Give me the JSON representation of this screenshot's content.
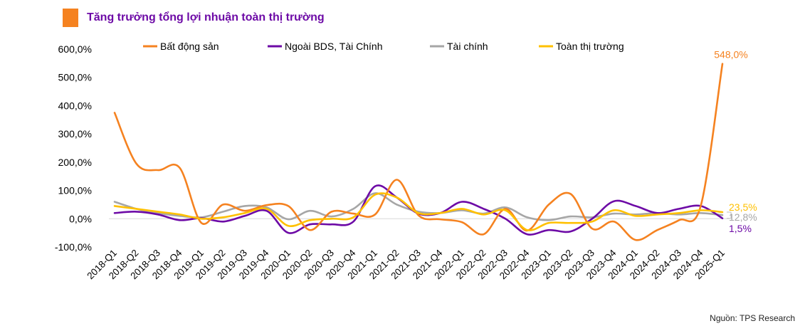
{
  "header": {
    "title": "Tăng trưởng tổng lợi nhuận toàn thị trường",
    "accent_color": "#f58220"
  },
  "source": "Nguồn: TPS Research",
  "chart_data": {
    "type": "line",
    "title": "Tăng trưởng tổng lợi nhuận toàn thị trường",
    "xlabel": "",
    "ylabel": "",
    "ylim": [
      -100,
      600
    ],
    "grid": false,
    "legend_position": "top",
    "y_ticks": [
      "-100,0%",
      "0,0%",
      "100,0%",
      "200,0%",
      "300,0%",
      "400,0%",
      "500,0%",
      "600,0%"
    ],
    "categories": [
      "2018-Q1",
      "2018-Q2",
      "2018-Q3",
      "2018-Q4",
      "2019-Q1",
      "2019-Q2",
      "2019-Q3",
      "2019-Q4",
      "2020-Q1",
      "2020-Q2",
      "2020-Q3",
      "2020-Q4",
      "2021-Q1",
      "2021-Q2",
      "2021-Q3",
      "2021-Q4",
      "2022-Q1",
      "2022-Q2",
      "2022-Q3",
      "2022-Q4",
      "2023-Q1",
      "2023-Q2",
      "2023-Q3",
      "2023-Q4",
      "2024-Q1",
      "2024-Q2",
      "2024-Q3",
      "2024-Q4",
      "2025-Q1"
    ],
    "series": [
      {
        "name": "Bất động sản",
        "color": "#f58220",
        "end_label": "548,0%",
        "values": [
          375,
          195,
          172,
          180,
          -15,
          50,
          28,
          48,
          45,
          -40,
          25,
          18,
          15,
          138,
          12,
          -2,
          -12,
          -55,
          35,
          -42,
          50,
          88,
          -35,
          -10,
          -75,
          -40,
          -5,
          45,
          548
        ]
      },
      {
        "name": "Ngoài BDS, Tài Chính",
        "color": "#6d0aa6",
        "end_label": "1,5%",
        "values": [
          20,
          25,
          15,
          -5,
          2,
          -10,
          10,
          28,
          -50,
          -20,
          -20,
          -10,
          115,
          75,
          18,
          20,
          60,
          35,
          0,
          -55,
          -40,
          -45,
          0,
          62,
          45,
          20,
          35,
          45,
          1.5
        ]
      },
      {
        "name": "Tài chính",
        "color": "#a6a6a6",
        "end_label": "12,8%",
        "values": [
          60,
          35,
          20,
          10,
          5,
          25,
          45,
          40,
          -2,
          28,
          8,
          35,
          90,
          50,
          25,
          20,
          30,
          18,
          40,
          5,
          -5,
          8,
          5,
          18,
          15,
          20,
          15,
          20,
          12.8
        ]
      },
      {
        "name": "Toàn thị trường",
        "color": "#ffc000",
        "end_label": "23,5%",
        "values": [
          45,
          35,
          25,
          15,
          0,
          5,
          20,
          35,
          -25,
          -5,
          0,
          5,
          85,
          75,
          20,
          20,
          35,
          15,
          30,
          -40,
          -15,
          -15,
          -10,
          30,
          10,
          15,
          20,
          30,
          23.5
        ]
      }
    ]
  }
}
